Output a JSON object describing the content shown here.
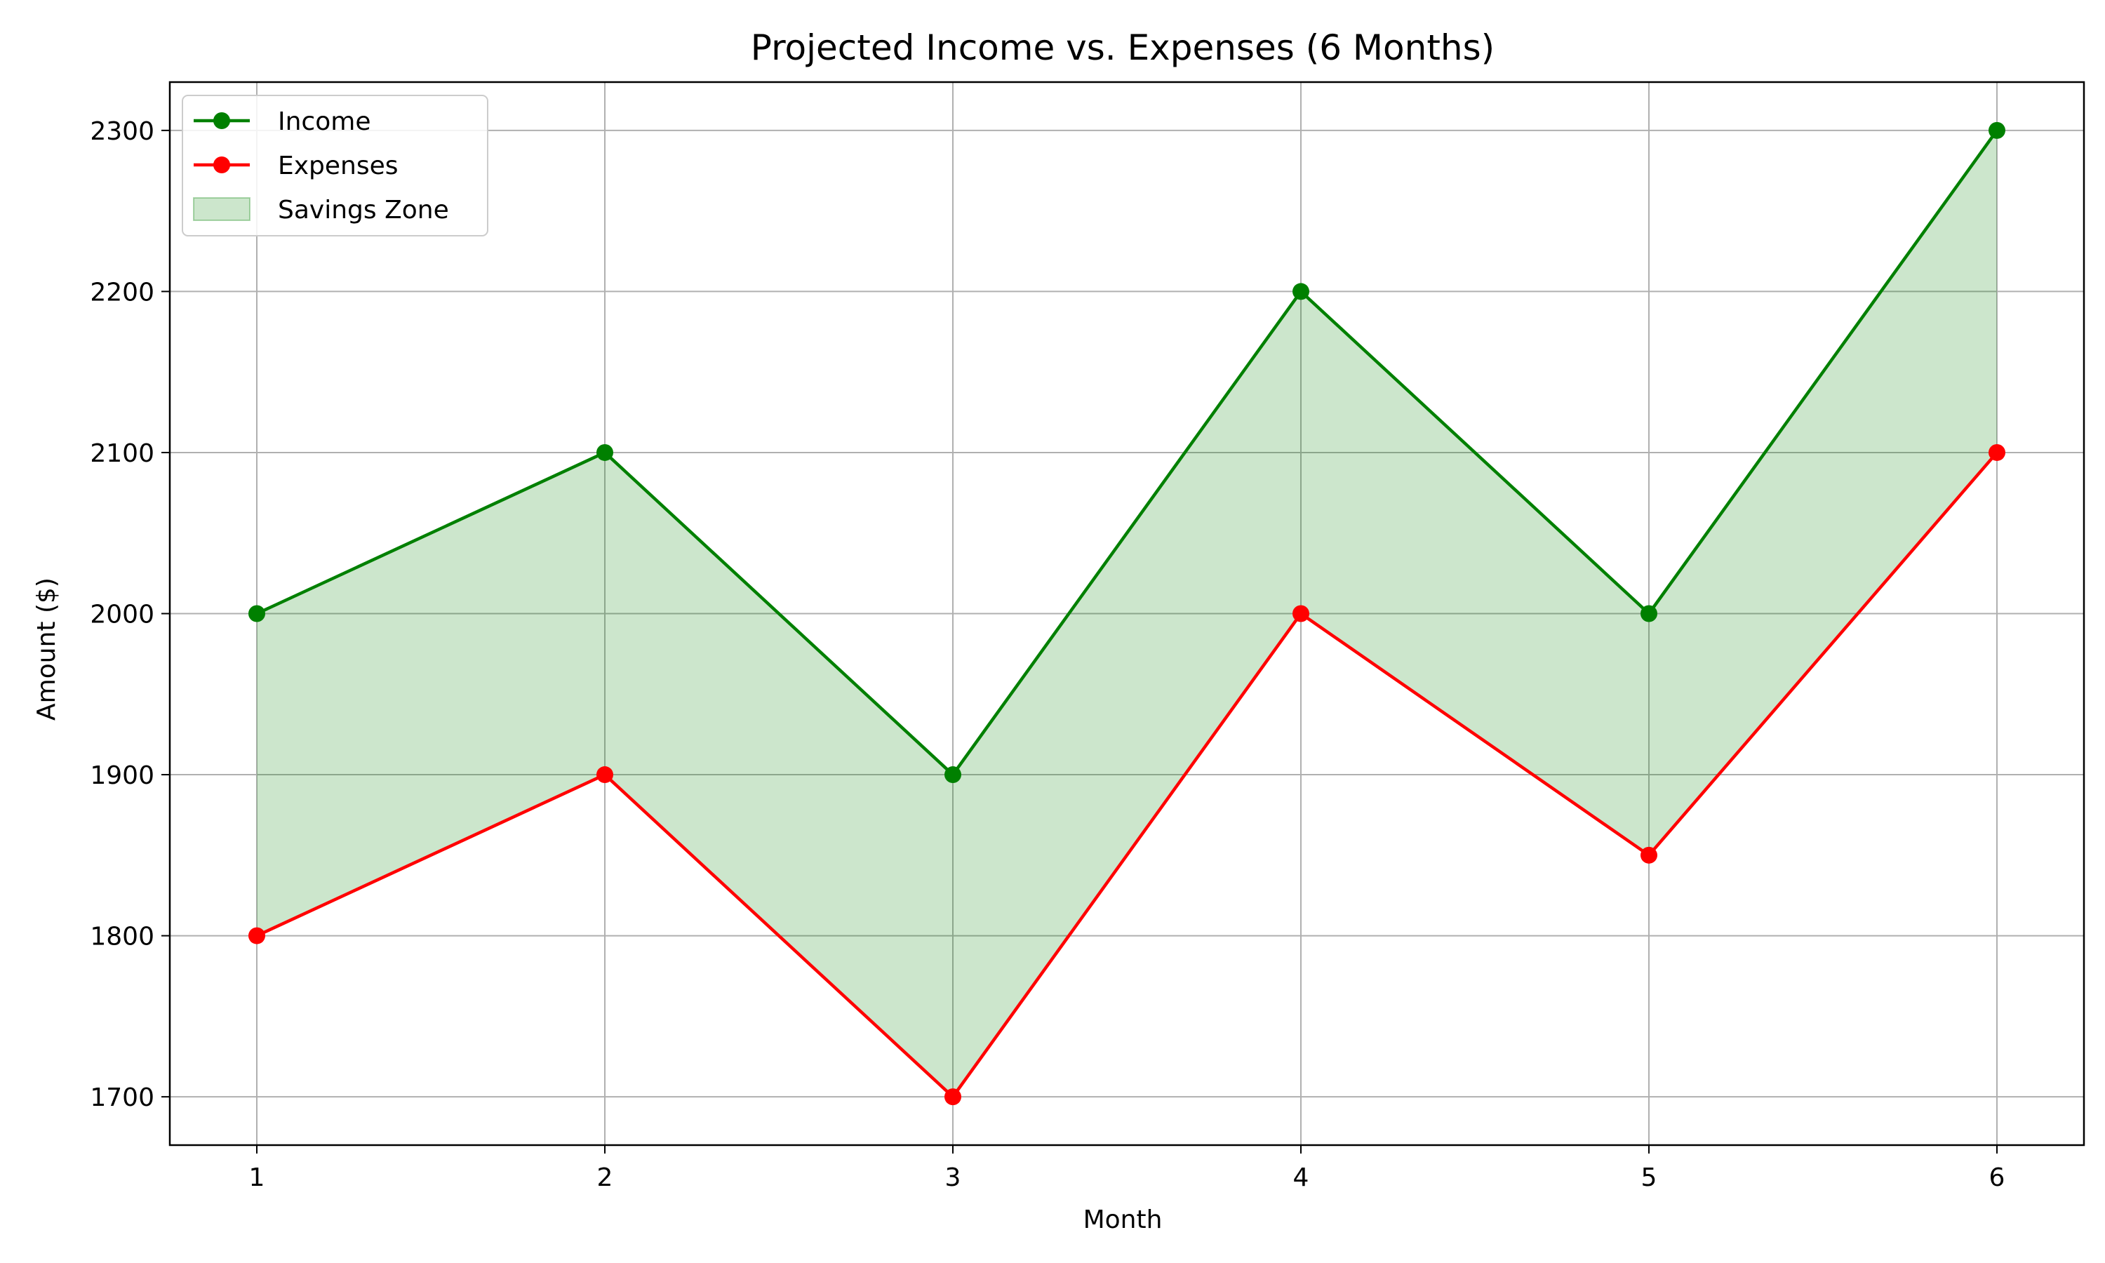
{
  "chart_data": {
    "type": "line",
    "title": "Projected Income vs. Expenses (6 Months)",
    "xlabel": "Month",
    "ylabel": "Amount ($)",
    "x": [
      1,
      2,
      3,
      4,
      5,
      6
    ],
    "x_ticks": [
      "1",
      "2",
      "3",
      "4",
      "5",
      "6"
    ],
    "y_ticks": [
      "1700",
      "1800",
      "1900",
      "2000",
      "2100",
      "2200",
      "2300"
    ],
    "xlim": [
      0.75,
      6.25
    ],
    "ylim": [
      1670,
      2330
    ],
    "grid": true,
    "legend_position": "top-left",
    "series": [
      {
        "name": "Income",
        "values": [
          2000,
          2100,
          1900,
          2200,
          2000,
          2300
        ],
        "color": "#008000",
        "marker": "circle"
      },
      {
        "name": "Expenses",
        "values": [
          1800,
          1900,
          1700,
          2000,
          1850,
          2100
        ],
        "color": "#ff0000",
        "marker": "circle"
      }
    ],
    "fill_between": {
      "name": "Savings Zone",
      "upper": "Income",
      "lower": "Expenses",
      "color": "#008000",
      "opacity": 0.2
    }
  }
}
